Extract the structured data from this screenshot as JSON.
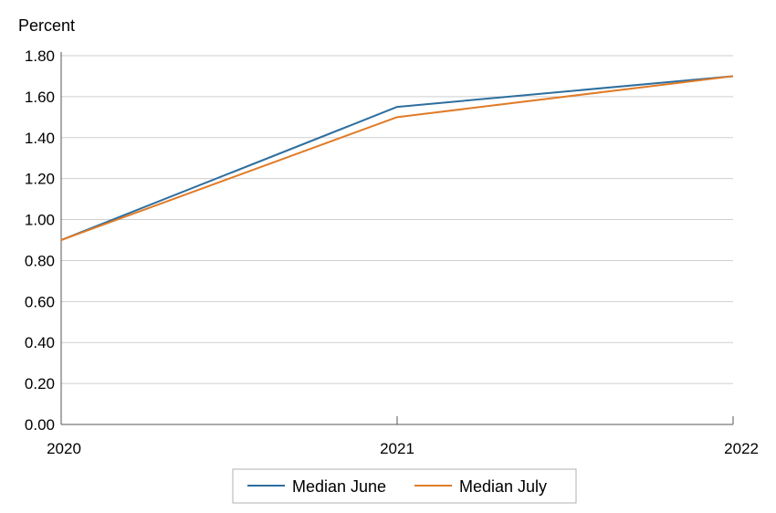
{
  "chart_data": {
    "type": "line",
    "ylabel": "Percent",
    "xlabel": "",
    "x": [
      "2020",
      "2021",
      "2022"
    ],
    "ylim": [
      0,
      1.8
    ],
    "yticks": [
      "0.00",
      "0.20",
      "0.40",
      "0.60",
      "0.80",
      "1.00",
      "1.20",
      "1.40",
      "1.60",
      "1.80"
    ],
    "grid": true,
    "legend_position": "bottom-center",
    "series": [
      {
        "name": "Median June",
        "color": "#2E6E9E",
        "values": [
          0.9,
          1.55,
          1.7
        ]
      },
      {
        "name": "Median July",
        "color": "#E07B27",
        "values": [
          0.9,
          1.5,
          1.7
        ]
      }
    ]
  }
}
